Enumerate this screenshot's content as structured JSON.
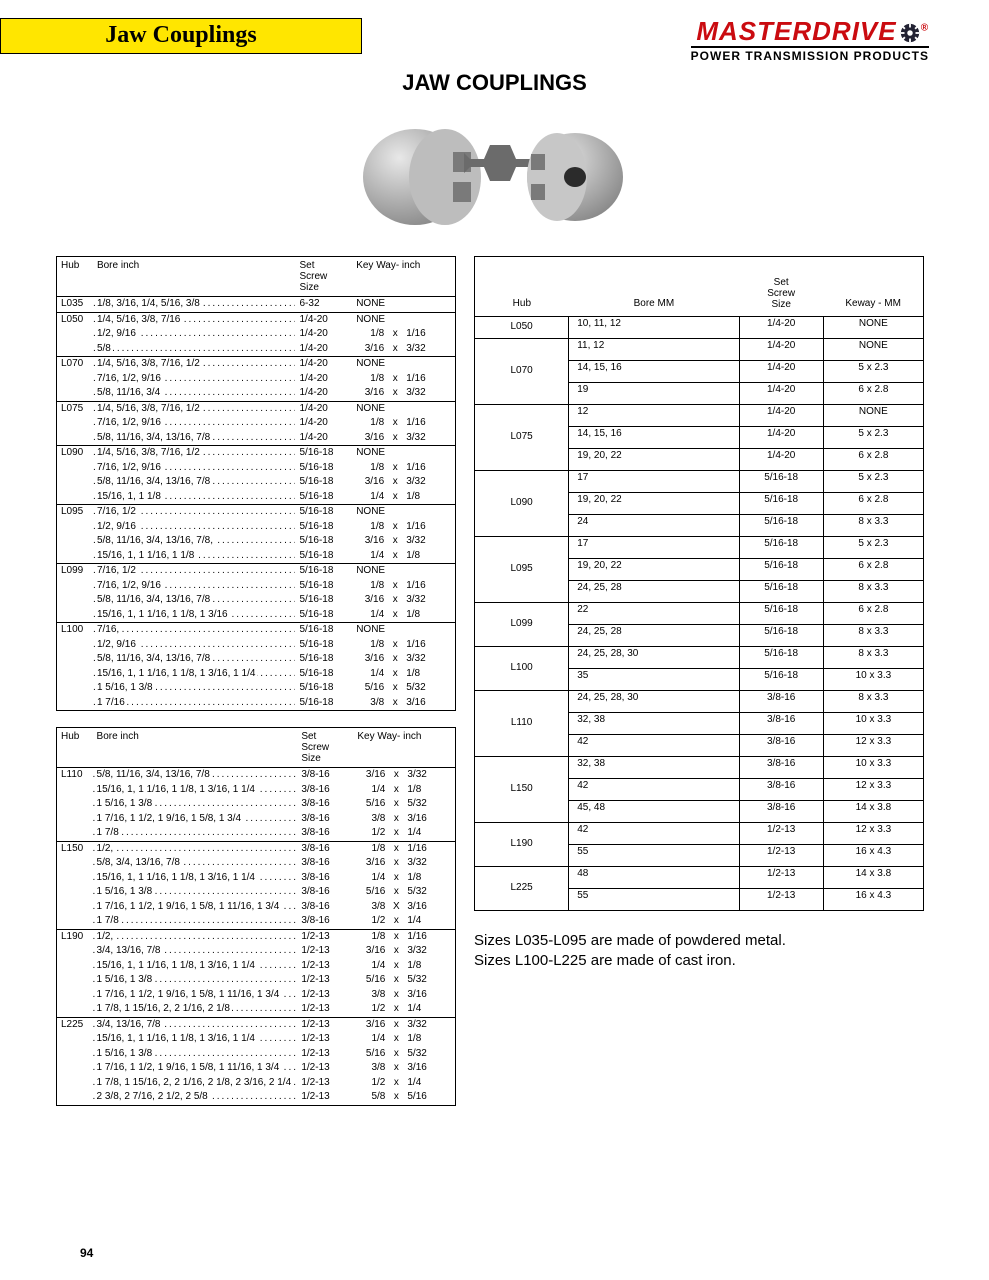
{
  "brand_name": "MASTERDRIVE",
  "brand_sub": "POWER TRANSMISSION PRODUCTS",
  "tab_title": "Jaw Couplings",
  "page_title": "JAW COUPLINGS",
  "page_number": "94",
  "colors": {
    "brand_red": "#ca0b10",
    "tab_yellow": "#ffe600",
    "rule": "#000000"
  },
  "inch_headers": {
    "hub": "Hub",
    "bore": "Bore inch",
    "set": "Set\nScrew\nSize",
    "key": "Key Way- inch"
  },
  "mm_headers": {
    "hub": "Hub",
    "bore": "Bore MM",
    "set": "Set\nScrew\nSize",
    "key": "Keway - MM"
  },
  "inch_table_a": [
    {
      "hub": "L035",
      "rows": [
        {
          "bore": "1/8, 3/16, 1/4, 5/16, 3/8",
          "set": "6-32",
          "key": "NONE"
        }
      ]
    },
    {
      "hub": "L050",
      "rows": [
        {
          "bore": "1/4, 5/16, 3/8, 7/16",
          "set": "1/4-20",
          "key": "NONE"
        },
        {
          "bore": "1/2, 9/16",
          "set": "1/4-20",
          "key": [
            "1/8",
            "1/16"
          ]
        },
        {
          "bore": "5/8",
          "set": "1/4-20",
          "key": [
            "3/16",
            "3/32"
          ]
        }
      ]
    },
    {
      "hub": "L070",
      "rows": [
        {
          "bore": "1/4, 5/16, 3/8, 7/16, 1/2",
          "set": "1/4-20",
          "key": "NONE"
        },
        {
          "bore": "7/16, 1/2, 9/16",
          "set": "1/4-20",
          "key": [
            "1/8",
            "1/16"
          ]
        },
        {
          "bore": "5/8, 11/16, 3/4",
          "set": "1/4-20",
          "key": [
            "3/16",
            "3/32"
          ]
        }
      ]
    },
    {
      "hub": "L075",
      "rows": [
        {
          "bore": "1/4, 5/16, 3/8, 7/16, 1/2",
          "set": "1/4-20",
          "key": "NONE"
        },
        {
          "bore": "7/16, 1/2, 9/16",
          "set": "1/4-20",
          "key": [
            "1/8",
            "1/16"
          ]
        },
        {
          "bore": "5/8, 11/16, 3/4, 13/16, 7/8",
          "set": "1/4-20",
          "key": [
            "3/16",
            "3/32"
          ]
        }
      ]
    },
    {
      "hub": "L090",
      "rows": [
        {
          "bore": "1/4, 5/16, 3/8, 7/16, 1/2",
          "set": "5/16-18",
          "key": "NONE"
        },
        {
          "bore": "7/16, 1/2, 9/16",
          "set": "5/16-18",
          "key": [
            "1/8",
            "1/16"
          ]
        },
        {
          "bore": "5/8, 11/16, 3/4, 13/16, 7/8",
          "set": "5/16-18",
          "key": [
            "3/16",
            "3/32"
          ]
        },
        {
          "bore": "15/16, 1, 1 1/8",
          "set": "5/16-18",
          "key": [
            "1/4",
            "1/8"
          ]
        }
      ]
    },
    {
      "hub": "L095",
      "rows": [
        {
          "bore": "7/16, 1/2",
          "set": "5/16-18",
          "key": "NONE"
        },
        {
          "bore": "1/2, 9/16",
          "set": "5/16-18",
          "key": [
            "1/8",
            "1/16"
          ]
        },
        {
          "bore": "5/8, 11/16, 3/4, 13/16, 7/8,",
          "set": "5/16-18",
          "key": [
            "3/16",
            "3/32"
          ]
        },
        {
          "bore": "15/16, 1, 1 1/16, 1 1/8",
          "set": "5/16-18",
          "key": [
            "1/4",
            "1/8"
          ]
        }
      ]
    },
    {
      "hub": "L099",
      "rows": [
        {
          "bore": "7/16, 1/2",
          "set": "5/16-18",
          "key": "NONE"
        },
        {
          "bore": "7/16, 1/2, 9/16",
          "set": "5/16-18",
          "key": [
            "1/8",
            "1/16"
          ]
        },
        {
          "bore": "5/8, 11/16, 3/4, 13/16, 7/8",
          "set": "5/16-18",
          "key": [
            "3/16",
            "3/32"
          ]
        },
        {
          "bore": "15/16, 1, 1 1/16, 1 1/8, 1 3/16",
          "set": "5/16-18",
          "key": [
            "1/4",
            "1/8"
          ]
        }
      ]
    },
    {
      "hub": "L100",
      "rows": [
        {
          "bore": "7/16,",
          "set": "5/16-18",
          "key": "NONE"
        },
        {
          "bore": "1/2, 9/16",
          "set": "5/16-18",
          "key": [
            "1/8",
            "1/16"
          ]
        },
        {
          "bore": "5/8, 11/16, 3/4, 13/16, 7/8",
          "set": "5/16-18",
          "key": [
            "3/16",
            "3/32"
          ]
        },
        {
          "bore": "15/16, 1, 1 1/16, 1 1/8, 1 3/16, 1 1/4",
          "set": "5/16-18",
          "key": [
            "1/4",
            "1/8"
          ]
        },
        {
          "bore": "1 5/16, 1 3/8",
          "set": "5/16-18",
          "key": [
            "5/16",
            "5/32"
          ]
        },
        {
          "bore": "1 7/16",
          "set": "5/16-18",
          "key": [
            "3/8",
            "3/16"
          ]
        }
      ]
    }
  ],
  "inch_table_b": [
    {
      "hub": "L110",
      "rows": [
        {
          "bore": "5/8, 11/16, 3/4, 13/16, 7/8",
          "set": "3/8-16",
          "key": [
            "3/16",
            "3/32"
          ]
        },
        {
          "bore": "15/16, 1, 1 1/16, 1 1/8, 1 3/16, 1 1/4",
          "set": "3/8-16",
          "key": [
            "1/4",
            "1/8"
          ]
        },
        {
          "bore": "1 5/16, 1 3/8",
          "set": "3/8-16",
          "key": [
            "5/16",
            "5/32"
          ]
        },
        {
          "bore": "1 7/16, 1 1/2, 1 9/16, 1 5/8, 1 3/4",
          "set": "3/8-16",
          "key": [
            "3/8",
            "3/16"
          ]
        },
        {
          "bore": "1 7/8",
          "set": "3/8-16",
          "key": [
            "1/2",
            "1/4"
          ]
        }
      ]
    },
    {
      "hub": "L150",
      "rows": [
        {
          "bore": "1/2,",
          "set": "3/8-16",
          "key": [
            "1/8",
            "1/16"
          ]
        },
        {
          "bore": "5/8, 3/4, 13/16, 7/8",
          "set": "3/8-16",
          "key": [
            "3/16",
            "3/32"
          ]
        },
        {
          "bore": "15/16, 1, 1 1/16, 1 1/8, 1 3/16, 1 1/4",
          "set": "3/8-16",
          "key": [
            "1/4",
            "1/8"
          ]
        },
        {
          "bore": "1 5/16, 1 3/8",
          "set": "3/8-16",
          "key": [
            "5/16",
            "5/32"
          ]
        },
        {
          "bore": "1 7/16, 1 1/2, 1 9/16, 1 5/8, 1 11/16, 1 3/4",
          "set": "3/8-16",
          "key": [
            "3/8",
            "3/16",
            "X"
          ]
        },
        {
          "bore": "1 7/8",
          "set": "3/8-16",
          "key": [
            "1/2",
            "1/4"
          ]
        }
      ]
    },
    {
      "hub": "L190",
      "rows": [
        {
          "bore": "1/2,",
          "set": "1/2-13",
          "key": [
            "1/8",
            "1/16"
          ]
        },
        {
          "bore": "3/4, 13/16, 7/8",
          "set": "1/2-13",
          "key": [
            "3/16",
            "3/32"
          ]
        },
        {
          "bore": "15/16, 1, 1 1/16, 1 1/8, 1 3/16, 1 1/4",
          "set": "1/2-13",
          "key": [
            "1/4",
            "1/8"
          ]
        },
        {
          "bore": "1 5/16, 1 3/8",
          "set": "1/2-13",
          "key": [
            "5/16",
            "5/32"
          ]
        },
        {
          "bore": "1 7/16, 1 1/2, 1 9/16, 1 5/8, 1 11/16, 1 3/4",
          "set": "1/2-13",
          "key": [
            "3/8",
            "3/16"
          ]
        },
        {
          "bore": "1 7/8, 1 15/16, 2, 2 1/16, 2 1/8",
          "set": "1/2-13",
          "key": [
            "1/2",
            "1/4"
          ]
        }
      ]
    },
    {
      "hub": "L225",
      "rows": [
        {
          "bore": "3/4, 13/16, 7/8",
          "set": "1/2-13",
          "key": [
            "3/16",
            "3/32"
          ]
        },
        {
          "bore": "15/16, 1, 1 1/16, 1 1/8, 1 3/16, 1 1/4",
          "set": "1/2-13",
          "key": [
            "1/4",
            "1/8"
          ]
        },
        {
          "bore": "1 5/16, 1 3/8",
          "set": "1/2-13",
          "key": [
            "5/16",
            "5/32"
          ]
        },
        {
          "bore": "1 7/16, 1 1/2, 1 9/16, 1 5/8, 1 11/16, 1 3/4",
          "set": "1/2-13",
          "key": [
            "3/8",
            "3/16"
          ]
        },
        {
          "bore": "1 7/8, 1 15/16, 2, 2 1/16, 2 1/8, 2 3/16, 2 1/4",
          "set": "1/2-13",
          "key": [
            "1/2",
            "1/4"
          ]
        },
        {
          "bore": "2 3/8, 2 7/16, 2 1/2, 2 5/8",
          "set": "1/2-13",
          "key": [
            "5/8",
            "5/16"
          ]
        }
      ]
    }
  ],
  "mm_table": [
    {
      "hub": "L050",
      "rows": [
        {
          "bore": "10, 11, 12",
          "set": "1/4-20",
          "key": "NONE"
        }
      ]
    },
    {
      "hub": "L070",
      "rows": [
        {
          "bore": "11, 12",
          "set": "1/4-20",
          "key": "NONE"
        },
        {
          "bore": "14, 15, 16",
          "set": "1/4-20",
          "key": "5 x 2.3"
        },
        {
          "bore": "19",
          "set": "1/4-20",
          "key": "6 x 2.8"
        }
      ]
    },
    {
      "hub": "L075",
      "rows": [
        {
          "bore": "12",
          "set": "1/4-20",
          "key": "NONE"
        },
        {
          "bore": "14, 15, 16",
          "set": "1/4-20",
          "key": "5 x 2.3"
        },
        {
          "bore": "19, 20, 22",
          "set": "1/4-20",
          "key": "6 x 2.8"
        }
      ]
    },
    {
      "hub": "L090",
      "rows": [
        {
          "bore": "17",
          "set": "5/16-18",
          "key": "5 x 2.3"
        },
        {
          "bore": "19, 20, 22",
          "set": "5/16-18",
          "key": "6 x 2.8"
        },
        {
          "bore": "24",
          "set": "5/16-18",
          "key": "8 x 3.3"
        }
      ]
    },
    {
      "hub": "L095",
      "rows": [
        {
          "bore": "17",
          "set": "5/16-18",
          "key": "5 x 2.3"
        },
        {
          "bore": "19, 20, 22",
          "set": "5/16-18",
          "key": "6 x 2.8"
        },
        {
          "bore": "24, 25, 28",
          "set": "5/16-18",
          "key": "8 x 3.3"
        }
      ]
    },
    {
      "hub": "L099",
      "rows": [
        {
          "bore": "22",
          "set": "5/16-18",
          "key": "6 x 2.8"
        },
        {
          "bore": "24, 25, 28",
          "set": "5/16-18",
          "key": "8 x 3.3"
        }
      ]
    },
    {
      "hub": "L100",
      "rows": [
        {
          "bore": "24, 25, 28, 30",
          "set": "5/16-18",
          "key": "8 x 3.3"
        },
        {
          "bore": "35",
          "set": "5/16-18",
          "key": "10 x 3.3"
        }
      ]
    },
    {
      "hub": "L110",
      "rows": [
        {
          "bore": "24, 25, 28, 30",
          "set": "3/8-16",
          "key": "8 x 3.3"
        },
        {
          "bore": "32, 38",
          "set": "3/8-16",
          "key": "10 x 3.3"
        },
        {
          "bore": "42",
          "set": "3/8-16",
          "key": "12 x 3.3"
        }
      ]
    },
    {
      "hub": "L150",
      "rows": [
        {
          "bore": "32, 38",
          "set": "3/8-16",
          "key": "10 x 3.3"
        },
        {
          "bore": "42",
          "set": "3/8-16",
          "key": "12 x 3.3"
        },
        {
          "bore": "45, 48",
          "set": "3/8-16",
          "key": "14 x 3.8"
        }
      ]
    },
    {
      "hub": "L190",
      "rows": [
        {
          "bore": "42",
          "set": "1/2-13",
          "key": "12 x 3.3"
        },
        {
          "bore": "55",
          "set": "1/2-13",
          "key": "16 x 4.3"
        }
      ]
    },
    {
      "hub": "L225",
      "rows": [
        {
          "bore": "48",
          "set": "1/2-13",
          "key": "14 x 3.8"
        },
        {
          "bore": "55",
          "set": "1/2-13",
          "key": "16 x 4.3"
        }
      ]
    }
  ],
  "footnote1": "Sizes L035-L095 are made of powdered metal.",
  "footnote2": "Sizes L100-L225 are made of cast iron."
}
